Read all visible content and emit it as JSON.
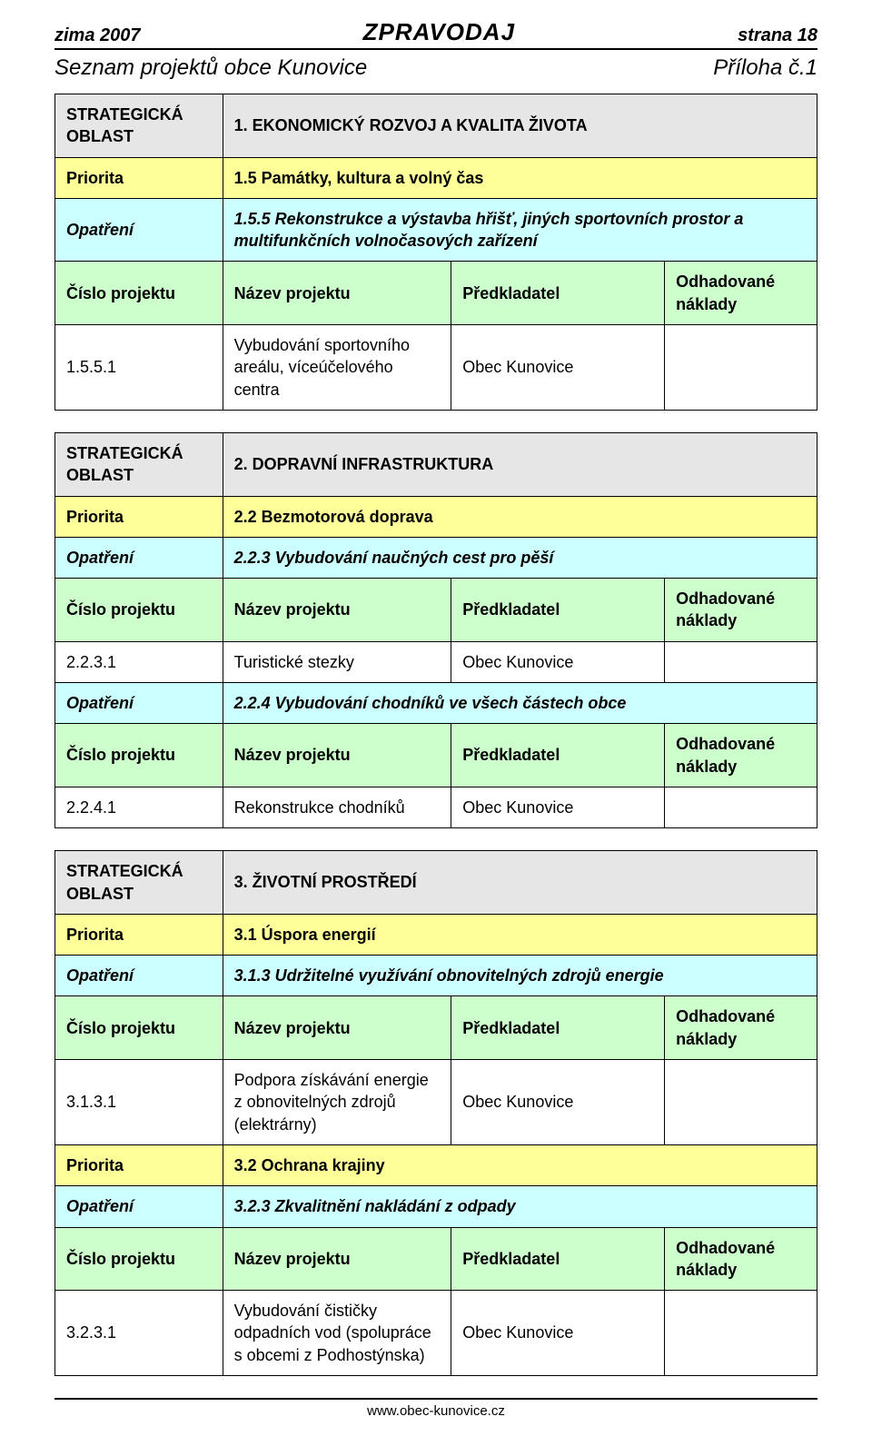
{
  "colors": {
    "grey": "#e6e6e6",
    "yellow": "#ffff99",
    "cyan": "#ccffff",
    "green": "#ccffcc",
    "white": "#ffffff",
    "border": "#000000"
  },
  "header": {
    "left": "zima 2007",
    "center": "ZPRAVODAJ",
    "right": "strana 18"
  },
  "subtitle": {
    "left": "Seznam projektů obce Kunovice",
    "right": "Příloha č.1"
  },
  "labels": {
    "strategicka": "STRATEGICKÁ OBLAST",
    "priorita": "Priorita",
    "opatreni": "Opatření",
    "cislo": "Číslo projektu",
    "nazev": "Název projektu",
    "predkladatel": "Předkladatel",
    "naklady": "Odhadované náklady"
  },
  "section1": {
    "oblast": "1. EKONOMICKÝ ROZVOJ A KVALITA ŽIVOTA",
    "priorita": "1.5 Památky, kultura a volný čas",
    "opatreni": "1.5.5 Rekonstrukce a výstavba hřišť, jiných sportovních prostor a multifunkčních volnočasových zařízení",
    "projekt": {
      "cislo": "1.5.5.1",
      "nazev": "Vybudování sportovního areálu, víceúčelového centra",
      "predkladatel": "Obec Kunovice",
      "naklady": ""
    }
  },
  "section2": {
    "oblast": "2. DOPRAVNÍ INFRASTRUKTURA",
    "priorita": "2.2 Bezmotorová doprava",
    "opatreni1": "2.2.3 Vybudování naučných cest pro pěší",
    "projekt1": {
      "cislo": "2.2.3.1",
      "nazev": "Turistické stezky",
      "predkladatel": "Obec Kunovice",
      "naklady": ""
    },
    "opatreni2": "2.2.4 Vybudování chodníků ve všech částech obce",
    "projekt2": {
      "cislo": "2.2.4.1",
      "nazev": "Rekonstrukce chodníků",
      "predkladatel": "Obec Kunovice",
      "naklady": ""
    }
  },
  "section3": {
    "oblast": "3. ŽIVOTNÍ PROSTŘEDÍ",
    "priorita1": "3.1 Úspora energií",
    "opatreni1": "3.1.3 Udržitelné využívání obnovitelných zdrojů energie",
    "projekt1": {
      "cislo": "3.1.3.1",
      "nazev": "Podpora získávání energie z obnovitelných zdrojů (elektrárny)",
      "predkladatel": "Obec Kunovice",
      "naklady": ""
    },
    "priorita2": "3.2 Ochrana krajiny",
    "opatreni2": "3.2.3 Zkvalitnění nakládání z odpady",
    "projekt2": {
      "cislo": "3.2.3.1",
      "nazev": "Vybudování čističky odpadních vod (spolupráce s obcemi z Podhostýnska)",
      "predkladatel": "Obec Kunovice",
      "naklady": ""
    }
  },
  "footer": "www.obec-kunovice.cz"
}
